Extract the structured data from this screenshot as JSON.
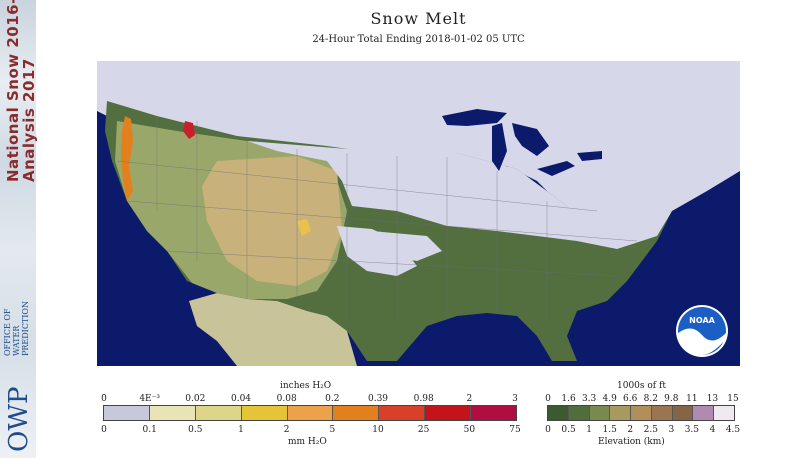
{
  "sidebar": {
    "title_line1": "National Snow",
    "title_line2": "Analysis",
    "years_line1": "2016-",
    "years_line2": "2017",
    "office": [
      "OFFICE OF",
      "WATER",
      "PREDICTION"
    ],
    "owp": "OWP"
  },
  "header": {
    "title": "Snow Melt",
    "subtitle": "24-Hour Total Ending 2018-01-02 05 UTC"
  },
  "map": {
    "noaa_logo": "NOAA",
    "colors": {
      "ocean": "#0c1a6b",
      "snow": "#d6d8ea",
      "low_land": "#536f3f",
      "plains": "#9aa76a",
      "high_land": "#c8b17a",
      "mexico_flat": "#c9c39a",
      "melt_light": "#e8c24a",
      "melt_heavy": "#c8202a"
    }
  },
  "legend_melt": {
    "top_units": "inches H₂O",
    "bottom_units": "mm H₂O",
    "top_ticks": [
      "0",
      "4E⁻³",
      "0.02",
      "0.04",
      "0.08",
      "0.2",
      "0.39",
      "0.98",
      "2",
      "3"
    ],
    "bottom_ticks": [
      "0",
      "0.1",
      "0.5",
      "1",
      "2",
      "5",
      "10",
      "25",
      "50",
      "75"
    ],
    "colors": [
      "#c8c8dc",
      "#e8e4b6",
      "#ddd58a",
      "#e6c43a",
      "#eca24a",
      "#e2801e",
      "#d8402a",
      "#c2141a",
      "#b00e42"
    ]
  },
  "legend_elev": {
    "top_units": "1000s of ft",
    "bottom_units": "Elevation (km)",
    "top_ticks": [
      "0",
      "1.6",
      "3.3",
      "4.9",
      "6.6",
      "8.2",
      "9.8",
      "11",
      "13",
      "15"
    ],
    "bottom_ticks": [
      "0",
      "0.5",
      "1",
      "1.5",
      "2",
      "2.5",
      "3",
      "3.5",
      "4",
      "4.5"
    ],
    "colors": [
      "#3c5a30",
      "#4f6e3c",
      "#7a8a4e",
      "#a69a5e",
      "#b08f5a",
      "#9a7650",
      "#866448",
      "#b08ab0",
      "#f0eaf0"
    ]
  }
}
